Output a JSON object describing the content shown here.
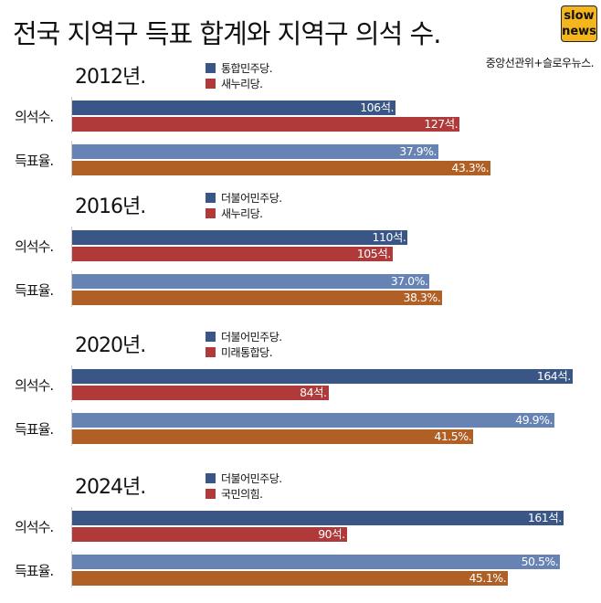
{
  "title": "전국 지역구 득표 합계와 지역구 의석 수.",
  "logo": {
    "line1": "slow",
    "line2": "news"
  },
  "source": "중앙선관위+슬로우뉴스.",
  "colors": {
    "seat_a": "#3a5686",
    "seat_b": "#b03a3a",
    "vote_a": "#6683b3",
    "vote_b": "#b05f25"
  },
  "row_labels": {
    "seats": "의석수.",
    "votes": "득표율."
  },
  "chart_data": [
    {
      "type": "bar",
      "title": "2012년.",
      "legend": [
        "통합민주당.",
        "새누리당."
      ],
      "categories": [
        "의석수.",
        "득표율."
      ],
      "seats": [
        106,
        127
      ],
      "seat_labels": [
        "106석.",
        "127석."
      ],
      "votes": [
        37.9,
        43.3
      ],
      "vote_labels": [
        "37.9%.",
        "43.3%."
      ]
    },
    {
      "type": "bar",
      "title": "2016년.",
      "legend": [
        "더불어민주당.",
        "새누리당."
      ],
      "categories": [
        "의석수.",
        "득표율."
      ],
      "seats": [
        110,
        105
      ],
      "seat_labels": [
        "110석.",
        "105석."
      ],
      "votes": [
        37.0,
        38.3
      ],
      "vote_labels": [
        "37.0%.",
        "38.3%."
      ]
    },
    {
      "type": "bar",
      "title": "2020년.",
      "legend": [
        "더불어민주당.",
        "미래통합당."
      ],
      "categories": [
        "의석수.",
        "득표율."
      ],
      "seats": [
        164,
        84
      ],
      "seat_labels": [
        "164석.",
        "84석."
      ],
      "votes": [
        49.9,
        41.5
      ],
      "vote_labels": [
        "49.9%.",
        "41.5%."
      ]
    },
    {
      "type": "bar",
      "title": "2024년.",
      "legend": [
        "더불어민주당.",
        "국민의힘."
      ],
      "categories": [
        "의석수.",
        "득표율."
      ],
      "seats": [
        161,
        90
      ],
      "seat_labels": [
        "161석.",
        "90석."
      ],
      "votes": [
        50.5,
        45.1
      ],
      "vote_labels": [
        "50.5%.",
        "45.1%."
      ]
    }
  ]
}
